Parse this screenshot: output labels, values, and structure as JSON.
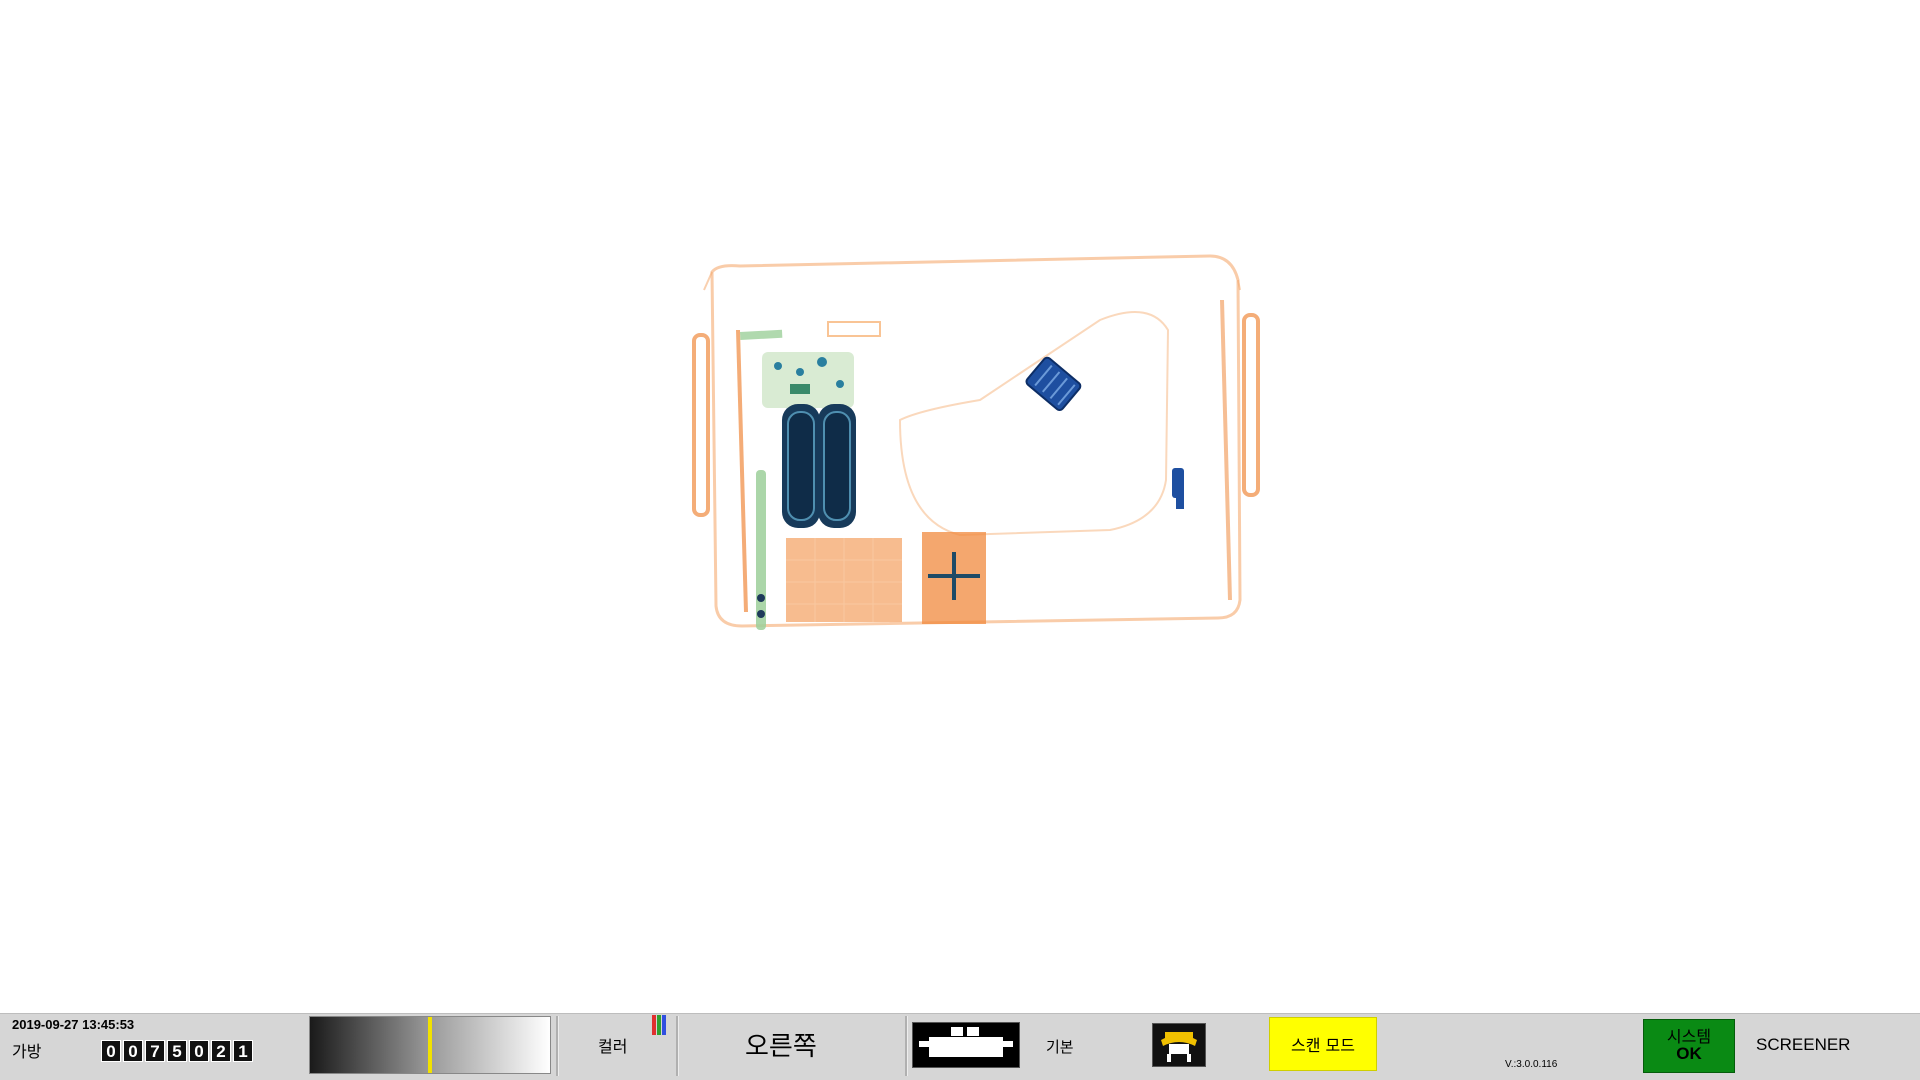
{
  "scan": {
    "image_description_icon": "xray-bag-image"
  },
  "status_bar": {
    "datetime": "2019-09-27 13:45:53",
    "bag_label": "가방",
    "bag_counter_digits": [
      "0",
      "0",
      "7",
      "5",
      "0",
      "2",
      "1"
    ],
    "density_gradient_level": 0.49,
    "color_label": "컬러",
    "color_icon_colors": [
      "#e03030",
      "#30a030",
      "#3050e0"
    ],
    "side_label": "오른쪽",
    "conveyor_icon": "conveyor-belt-icon",
    "preset_label": "기본",
    "operator_icon": "operator-icon",
    "scan_mode_label": "스캔 모드",
    "version": "V.:3.0.0.116",
    "system_status_title": "시스템",
    "system_status_value": "OK",
    "system_status_color": "#0a8a14",
    "role_label": "SCREENER"
  }
}
